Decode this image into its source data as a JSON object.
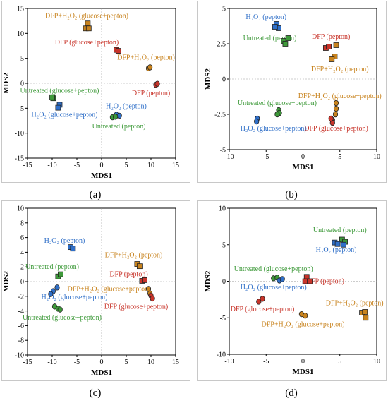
{
  "colors": {
    "blue": "#2f6fc8",
    "green": "#3e9a3a",
    "red": "#c8342a",
    "orange": "#c8831e"
  },
  "chart_data": [
    {
      "type": "scatter",
      "panel": "(a)",
      "xlabel": "MDS1",
      "ylabel": "MDS2",
      "xlim": [
        -15,
        15
      ],
      "ylim": [
        -15,
        15
      ],
      "xticks": [
        -15,
        -10,
        -5,
        0,
        5,
        10,
        15
      ],
      "yticks": [
        -15,
        -10,
        -5,
        0,
        5,
        10,
        15
      ],
      "points": [
        {
          "m": "s",
          "c": "orange",
          "x": -2.8,
          "y": 12.0
        },
        {
          "m": "s",
          "c": "orange",
          "x": -3.2,
          "y": 11.0
        },
        {
          "m": "s",
          "c": "orange",
          "x": -2.6,
          "y": 11.0
        },
        {
          "m": "s",
          "c": "red",
          "x": 3.0,
          "y": 6.7
        },
        {
          "m": "s",
          "c": "red",
          "x": 3.4,
          "y": 6.5
        },
        {
          "m": "o",
          "c": "orange",
          "x": 9.5,
          "y": 3.0
        },
        {
          "m": "o",
          "c": "orange",
          "x": 9.8,
          "y": 3.2
        },
        {
          "m": "o",
          "c": "red",
          "x": 11.0,
          "y": -0.3
        },
        {
          "m": "o",
          "c": "red",
          "x": 11.3,
          "y": -0.1
        },
        {
          "m": "s",
          "c": "green",
          "x": -9.8,
          "y": -3.0
        },
        {
          "m": "s",
          "c": "green",
          "x": -10.0,
          "y": -2.8
        },
        {
          "m": "s",
          "c": "blue",
          "x": -8.5,
          "y": -4.3
        },
        {
          "m": "s",
          "c": "blue",
          "x": -8.8,
          "y": -4.9
        },
        {
          "m": "o",
          "c": "blue",
          "x": 3.0,
          "y": -6.3
        },
        {
          "m": "o",
          "c": "blue",
          "x": 3.6,
          "y": -6.5
        },
        {
          "m": "o",
          "c": "green",
          "x": 2.2,
          "y": -6.8
        },
        {
          "m": "o",
          "c": "green",
          "x": 2.8,
          "y": -6.7
        }
      ],
      "labels": [
        {
          "text": "DFP+H₂O₂ (glucose+pepton)",
          "c": "orange",
          "x": -3,
          "y": 13.5
        },
        {
          "text": "DFP (glucose+pepton)",
          "c": "red",
          "x": -3,
          "y": 8.2
        },
        {
          "text": "DFP+H₂O₂ (pepton)",
          "c": "orange",
          "x": 9,
          "y": 5.2
        },
        {
          "text": "DFP (pepton)",
          "c": "red",
          "x": 10,
          "y": -2.0
        },
        {
          "text": "Untreated (glucose+pepton)",
          "c": "green",
          "x": -8.5,
          "y": -1.5
        },
        {
          "text": "H₂O₂ (glucose+pepton)",
          "c": "blue",
          "x": -7.5,
          "y": -6.3
        },
        {
          "text": "H₂O₂ (pepton)",
          "c": "blue",
          "x": 5,
          "y": -4.6
        },
        {
          "text": "Untreated (pepton)",
          "c": "green",
          "x": 3.5,
          "y": -8.6
        }
      ]
    },
    {
      "type": "scatter",
      "panel": "(b)",
      "xlabel": "MDS1",
      "ylabel": "MDS2",
      "xlim": [
        -10,
        10
      ],
      "ylim": [
        -5,
        5
      ],
      "xticks": [
        -10,
        -5,
        0,
        5,
        10
      ],
      "yticks": [
        -5,
        -2.5,
        0,
        2.5,
        5
      ],
      "points": [
        {
          "m": "s",
          "c": "blue",
          "x": -3.6,
          "y": 3.9
        },
        {
          "m": "s",
          "c": "blue",
          "x": -3.3,
          "y": 3.6
        },
        {
          "m": "s",
          "c": "blue",
          "x": -3.8,
          "y": 3.7
        },
        {
          "m": "s",
          "c": "green",
          "x": -2.6,
          "y": 2.7
        },
        {
          "m": "s",
          "c": "green",
          "x": -2.0,
          "y": 2.9
        },
        {
          "m": "s",
          "c": "green",
          "x": -2.4,
          "y": 2.5
        },
        {
          "m": "s",
          "c": "red",
          "x": 3.1,
          "y": 2.2
        },
        {
          "m": "s",
          "c": "red",
          "x": 3.5,
          "y": 2.3
        },
        {
          "m": "s",
          "c": "orange",
          "x": 4.5,
          "y": 2.4
        },
        {
          "m": "s",
          "c": "orange",
          "x": 4.3,
          "y": 1.6
        },
        {
          "m": "s",
          "c": "orange",
          "x": 3.9,
          "y": 1.4
        },
        {
          "m": "o",
          "c": "orange",
          "x": 4.5,
          "y": -1.7
        },
        {
          "m": "o",
          "c": "orange",
          "x": 4.5,
          "y": -2.1
        },
        {
          "m": "o",
          "c": "orange",
          "x": 4.4,
          "y": -2.5
        },
        {
          "m": "o",
          "c": "red",
          "x": 4.0,
          "y": -2.9
        },
        {
          "m": "o",
          "c": "red",
          "x": 4.0,
          "y": -3.1
        },
        {
          "m": "o",
          "c": "red",
          "x": 3.8,
          "y": -2.8
        },
        {
          "m": "o",
          "c": "green",
          "x": -3.3,
          "y": -2.2
        },
        {
          "m": "o",
          "c": "green",
          "x": -3.2,
          "y": -2.4
        },
        {
          "m": "o",
          "c": "green",
          "x": -3.5,
          "y": -2.5
        },
        {
          "m": "o",
          "c": "blue",
          "x": -6.2,
          "y": -2.8
        },
        {
          "m": "o",
          "c": "blue",
          "x": -6.3,
          "y": -3.0
        }
      ],
      "labels": [
        {
          "text": "H₂O₂ (pepton)",
          "c": "blue",
          "x": -5.0,
          "y": 4.4
        },
        {
          "text": "Untreated (pepton)",
          "c": "green",
          "x": -4.5,
          "y": 2.9
        },
        {
          "text": "DFP (pepton)",
          "c": "red",
          "x": 3.8,
          "y": 3.0
        },
        {
          "text": "DFP+H₂O₂ (pepton)",
          "c": "orange",
          "x": 5.0,
          "y": 0.7
        },
        {
          "text": "DFP+H₂O₂ (glucose+pepton)",
          "c": "orange",
          "x": 5.0,
          "y": -1.2
        },
        {
          "text": "Untreated (glucose+pepton)",
          "c": "green",
          "x": -3.5,
          "y": -1.7
        },
        {
          "text": "H₂O₂ (glucose+pepton)",
          "c": "blue",
          "x": -4.0,
          "y": -3.5
        },
        {
          "text": "DFP (glucose+pepton)",
          "c": "red",
          "x": 4.5,
          "y": -3.5
        }
      ]
    },
    {
      "type": "scatter",
      "panel": "(c)",
      "xlabel": "MDS1",
      "ylabel": "MDS2",
      "xlim": [
        -15,
        15
      ],
      "ylim": [
        -10,
        10
      ],
      "xticks": [
        -15,
        -10,
        -5,
        0,
        5,
        10,
        15
      ],
      "yticks": [
        -10,
        -8,
        -6,
        -4,
        -2,
        0,
        2,
        4,
        6,
        8,
        10
      ],
      "points": [
        {
          "m": "s",
          "c": "blue",
          "x": -6.3,
          "y": 4.7
        },
        {
          "m": "s",
          "c": "blue",
          "x": -5.8,
          "y": 4.5
        },
        {
          "m": "s",
          "c": "green",
          "x": -8.8,
          "y": 0.7
        },
        {
          "m": "s",
          "c": "green",
          "x": -8.3,
          "y": 1.0
        },
        {
          "m": "s",
          "c": "orange",
          "x": 7.2,
          "y": 2.4
        },
        {
          "m": "s",
          "c": "orange",
          "x": 7.7,
          "y": 2.1
        },
        {
          "m": "s",
          "c": "red",
          "x": 8.2,
          "y": 0.1
        },
        {
          "m": "s",
          "c": "red",
          "x": 8.7,
          "y": 0.2
        },
        {
          "m": "o",
          "c": "blue",
          "x": -9.0,
          "y": -0.8
        },
        {
          "m": "o",
          "c": "blue",
          "x": -9.8,
          "y": -1.3
        },
        {
          "m": "o",
          "c": "blue",
          "x": -10.3,
          "y": -1.7
        },
        {
          "m": "o",
          "c": "orange",
          "x": 9.5,
          "y": -1.0
        },
        {
          "m": "o",
          "c": "orange",
          "x": 9.8,
          "y": -1.6
        },
        {
          "m": "o",
          "c": "red",
          "x": 10.0,
          "y": -1.9
        },
        {
          "m": "o",
          "c": "red",
          "x": 10.3,
          "y": -2.3
        },
        {
          "m": "o",
          "c": "green",
          "x": -9.5,
          "y": -3.4
        },
        {
          "m": "o",
          "c": "green",
          "x": -8.8,
          "y": -3.7
        },
        {
          "m": "o",
          "c": "green",
          "x": -8.4,
          "y": -3.8
        }
      ],
      "labels": [
        {
          "text": "H₂O₂ (pepton)",
          "c": "blue",
          "x": -7.5,
          "y": 5.6
        },
        {
          "text": "DFP+H₂O₂ (pepton)",
          "c": "orange",
          "x": 6.5,
          "y": 3.6
        },
        {
          "text": "Untreated (pepton)",
          "c": "green",
          "x": -10.0,
          "y": 2.0
        },
        {
          "text": "DFP (pepton)",
          "c": "red",
          "x": 5.5,
          "y": 1.0
        },
        {
          "text": "DFP+H₂O₂ (glucose+pepton)",
          "c": "orange",
          "x": 1.5,
          "y": -1.0
        },
        {
          "text": "H₂O₂ (glucose+pepton)",
          "c": "blue",
          "x": -5.5,
          "y": -2.1
        },
        {
          "text": "DFP (glucose+pepton)",
          "c": "red",
          "x": 7.0,
          "y": -3.4
        },
        {
          "text": "Untreated (glucose+pepton)",
          "c": "green",
          "x": -8.0,
          "y": -4.9
        }
      ]
    },
    {
      "type": "scatter",
      "panel": "(d)",
      "xlabel": "MDS1",
      "ylabel": "MDS2",
      "xlim": [
        -10,
        10
      ],
      "ylim": [
        -10,
        10
      ],
      "xticks": [
        -10,
        -5,
        0,
        5,
        10
      ],
      "yticks": [
        -10,
        -5,
        0,
        5,
        10
      ],
      "points": [
        {
          "m": "s",
          "c": "green",
          "x": 5.3,
          "y": 5.7
        },
        {
          "m": "s",
          "c": "green",
          "x": 5.7,
          "y": 5.4
        },
        {
          "m": "s",
          "c": "blue",
          "x": 4.3,
          "y": 5.3
        },
        {
          "m": "s",
          "c": "blue",
          "x": 4.7,
          "y": 5.1
        },
        {
          "m": "s",
          "c": "blue",
          "x": 5.5,
          "y": 5.0
        },
        {
          "m": "o",
          "c": "green",
          "x": -4.0,
          "y": 0.4
        },
        {
          "m": "o",
          "c": "green",
          "x": -3.5,
          "y": 0.5
        },
        {
          "m": "o",
          "c": "blue",
          "x": -3.2,
          "y": 0.1
        },
        {
          "m": "o",
          "c": "blue",
          "x": -2.8,
          "y": 0.3
        },
        {
          "m": "s",
          "c": "red",
          "x": 0.5,
          "y": 0.6
        },
        {
          "m": "s",
          "c": "red",
          "x": 0.3,
          "y": 0.0
        },
        {
          "m": "s",
          "c": "red",
          "x": 0.9,
          "y": 0.0
        },
        {
          "m": "o",
          "c": "red",
          "x": -6.0,
          "y": -2.8
        },
        {
          "m": "o",
          "c": "red",
          "x": -5.5,
          "y": -2.4
        },
        {
          "m": "o",
          "c": "orange",
          "x": -0.2,
          "y": -4.5
        },
        {
          "m": "o",
          "c": "orange",
          "x": 0.3,
          "y": -4.7
        },
        {
          "m": "s",
          "c": "orange",
          "x": 8.0,
          "y": -4.3
        },
        {
          "m": "s",
          "c": "orange",
          "x": 8.4,
          "y": -4.2
        },
        {
          "m": "s",
          "c": "orange",
          "x": 8.5,
          "y": -5.0
        }
      ],
      "labels": [
        {
          "text": "Untreated (pepton)",
          "c": "green",
          "x": 5.0,
          "y": 7.0
        },
        {
          "text": "H₂O₂ (pepton)",
          "c": "blue",
          "x": 4.5,
          "y": 4.3
        },
        {
          "text": "Untreated (glucose+pepton)",
          "c": "green",
          "x": -4.0,
          "y": 1.7
        },
        {
          "text": "H₂O₂ (glucose+pepton)",
          "c": "blue",
          "x": -4.0,
          "y": -0.8
        },
        {
          "text": "DFP (pepton)",
          "c": "red",
          "x": 3.0,
          "y": 0.0
        },
        {
          "text": "DFP (glucose+pepton)",
          "c": "red",
          "x": -5.5,
          "y": -3.8
        },
        {
          "text": "DFP+H₂O₂ (pepton)",
          "c": "orange",
          "x": 7.0,
          "y": -3.0
        },
        {
          "text": "DFP+H₂O₂ (glucose+pepton)",
          "c": "orange",
          "x": 0.0,
          "y": -5.9
        }
      ]
    }
  ],
  "captions": [
    "(a)",
    "(b)",
    "(c)",
    "(d)"
  ]
}
